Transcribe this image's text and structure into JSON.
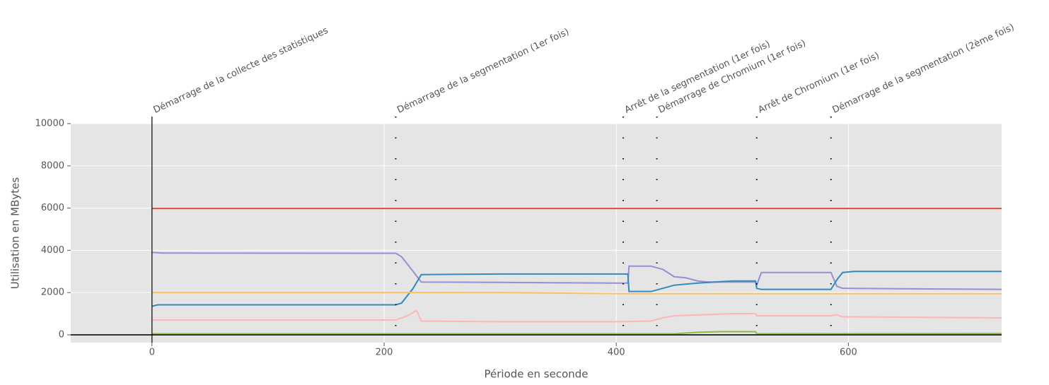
{
  "chart_data": {
    "type": "line",
    "xlabel": "Période en seconde",
    "ylabel": "Utilisation en MBytes",
    "xlim": [
      -70,
      732
    ],
    "ylim": [
      -370,
      10000
    ],
    "xticks": [
      0,
      200,
      400,
      600
    ],
    "yticks": [
      0,
      2000,
      4000,
      6000,
      8000,
      10000
    ],
    "grid": true,
    "series": [
      {
        "color": "#E24A33",
        "x": [
          0,
          732
        ],
        "values": [
          5980,
          5980
        ]
      },
      {
        "color": "#988ED5",
        "x": [
          0,
          10,
          210,
          215,
          225,
          232,
          300,
          400,
          410,
          411,
          430,
          440,
          450,
          460,
          470,
          480,
          520,
          521,
          525,
          585,
          590,
          595,
          732
        ],
        "values": [
          3900,
          3870,
          3860,
          3700,
          3000,
          2500,
          2480,
          2450,
          2450,
          3250,
          3250,
          3100,
          2750,
          2700,
          2550,
          2500,
          2500,
          2350,
          2950,
          2950,
          2300,
          2200,
          2150
        ]
      },
      {
        "color": "#348ABD",
        "x": [
          0,
          5,
          210,
          215,
          225,
          232,
          300,
          400,
          410,
          411,
          430,
          440,
          450,
          470,
          500,
          520,
          521,
          525,
          585,
          590,
          595,
          605,
          732
        ],
        "values": [
          1350,
          1420,
          1420,
          1500,
          2200,
          2850,
          2880,
          2880,
          2880,
          2050,
          2050,
          2200,
          2350,
          2450,
          2550,
          2550,
          2200,
          2150,
          2150,
          2600,
          2950,
          3000,
          3000
        ]
      },
      {
        "color": "#FBC15E",
        "x": [
          0,
          300,
          400,
          732
        ],
        "values": [
          2000,
          2000,
          1950,
          1950
        ]
      },
      {
        "color": "#FFB5B8",
        "x": [
          0,
          210,
          220,
          228,
          232,
          300,
          400,
          430,
          440,
          450,
          500,
          520,
          521,
          585,
          590,
          595,
          732
        ],
        "values": [
          700,
          700,
          900,
          1150,
          650,
          620,
          620,
          650,
          800,
          900,
          1000,
          1000,
          900,
          900,
          950,
          850,
          800
        ]
      },
      {
        "color": "#8EBA42",
        "x": [
          0,
          450,
          470,
          490,
          520,
          521,
          732
        ],
        "values": [
          50,
          50,
          120,
          150,
          150,
          50,
          60
        ]
      },
      {
        "color": "#333333",
        "x": [
          -70,
          732
        ],
        "values": [
          0,
          0
        ]
      }
    ],
    "annotations": [
      {
        "x": 0,
        "text": "Démarrage de la collecte des statistiques",
        "style": "solid"
      },
      {
        "x": 210,
        "text": "Démarrage de la segmentation (1er fois)",
        "style": "dotted"
      },
      {
        "x": 406,
        "text": "Arrêt de la segmentation (1er fois)",
        "style": "dotted"
      },
      {
        "x": 435,
        "text": "Démarrage de Chromium (1er fois)",
        "style": "dotted"
      },
      {
        "x": 521,
        "text": "Arrêt de Chromium (1er fois)",
        "style": "dotted"
      },
      {
        "x": 585,
        "text": "Démarrage de la segmentation (2ème fois)",
        "style": "dotted"
      }
    ]
  }
}
